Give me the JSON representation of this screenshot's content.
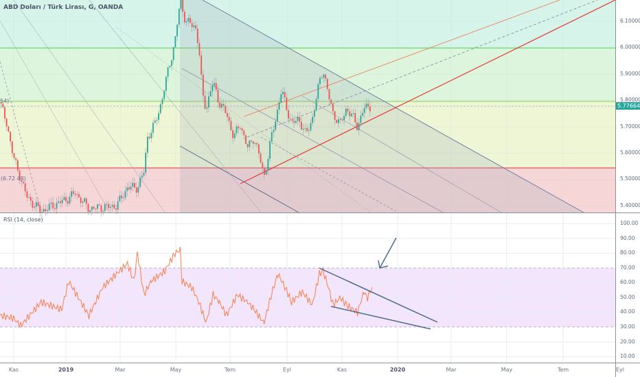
{
  "header": {
    "title": "ABD Doları / Türk Lirası, G, OANDA"
  },
  "price_scale": {
    "labels": [
      "6.10000",
      "6.00000",
      "5.90000",
      "5.80000",
      "5.70000",
      "5.60000",
      "5.50000",
      "5.40000"
    ],
    "current_price": "5.77664"
  },
  "fib_labels": {
    "upper_left": "54)",
    "lower_left": "(6.72 48)"
  },
  "rsi": {
    "title": "RSI (14, close)",
    "labels": [
      "100.00",
      "90.00",
      "80.00",
      "70.00",
      "60.00",
      "50.00",
      "40.00",
      "30.00",
      "20.00",
      "10.00"
    ],
    "band": [
      30,
      70
    ]
  },
  "time_axis": {
    "labels": [
      "Kas",
      "2019",
      "Mar",
      "May",
      "Tem",
      "Eyl",
      "Kas",
      "2020",
      "Mar",
      "May",
      "Tem",
      "Eyl"
    ],
    "bold": [
      false,
      true,
      false,
      false,
      false,
      false,
      false,
      true,
      false,
      false,
      false,
      false
    ]
  },
  "colors": {
    "up": "#26a69a",
    "down": "#ef5350",
    "rsi_line": "#f57f4a",
    "rsi_band": "#f3e5fc",
    "current_price": "#26a69a",
    "trend_red": "#e53935"
  },
  "chart_data": [
    {
      "type": "candlestick",
      "title": "ABD Doları / Türk Lirası, G, OANDA",
      "ylim": [
        5.37,
        6.18
      ],
      "price_ticks": [
        5.4,
        5.5,
        5.6,
        5.7,
        5.8,
        5.9,
        6.0,
        6.1
      ],
      "approx_closes": [
        [
          "2018-10-16",
          5.79
        ],
        [
          "2018-10-24",
          5.71
        ],
        [
          "2018-11-01",
          5.58
        ],
        [
          "2018-11-17",
          5.43
        ],
        [
          "2018-12-03",
          5.38
        ],
        [
          "2019-01-04",
          5.43
        ],
        [
          "2019-01-11",
          5.45
        ],
        [
          "2019-01-26",
          5.39
        ],
        [
          "2019-02-25",
          5.4
        ],
        [
          "2019-03-09",
          5.47
        ],
        [
          "2019-03-20",
          5.47
        ],
        [
          "2019-03-27",
          5.53
        ],
        [
          "2019-03-31",
          5.66
        ],
        [
          "2019-04-08",
          5.71
        ],
        [
          "2019-04-15",
          5.79
        ],
        [
          "2019-04-23",
          5.92
        ],
        [
          "2019-04-30",
          6.02
        ],
        [
          "2019-05-06",
          6.18
        ],
        [
          "2019-05-12",
          6.1
        ],
        [
          "2019-05-23",
          6.08
        ],
        [
          "2019-05-27",
          6.0
        ],
        [
          "2019-05-31",
          5.82
        ],
        [
          "2019-06-04",
          5.77
        ],
        [
          "2019-06-12",
          5.87
        ],
        [
          "2019-06-19",
          5.79
        ],
        [
          "2019-06-27",
          5.75
        ],
        [
          "2019-07-05",
          5.66
        ],
        [
          "2019-07-12",
          5.71
        ],
        [
          "2019-07-20",
          5.62
        ],
        [
          "2019-07-27",
          5.66
        ],
        [
          "2019-08-04",
          5.56
        ],
        [
          "2019-08-07",
          5.51
        ],
        [
          "2019-08-11",
          5.58
        ],
        [
          "2019-08-15",
          5.66
        ],
        [
          "2019-08-22",
          5.77
        ],
        [
          "2019-08-26",
          5.84
        ],
        [
          "2019-08-30",
          5.79
        ],
        [
          "2019-09-06",
          5.71
        ],
        [
          "2019-09-14",
          5.73
        ],
        [
          "2019-09-22",
          5.67
        ],
        [
          "2019-09-29",
          5.73
        ],
        [
          "2019-10-07",
          5.87
        ],
        [
          "2019-10-11",
          5.92
        ],
        [
          "2019-10-17",
          5.82
        ],
        [
          "2019-10-22",
          5.75
        ],
        [
          "2019-10-30",
          5.71
        ],
        [
          "2019-11-06",
          5.77
        ],
        [
          "2019-11-14",
          5.73
        ],
        [
          "2019-11-18",
          5.7
        ],
        [
          "2019-11-25",
          5.77
        ],
        [
          "2019-12-03",
          5.78
        ]
      ]
    },
    {
      "type": "line",
      "title": "RSI (14, close)",
      "ylim": [
        0,
        105
      ],
      "yticks": [
        10,
        20,
        30,
        40,
        50,
        60,
        70,
        80,
        90,
        100
      ],
      "approx_values": [
        [
          "2018-10-16",
          38
        ],
        [
          "2018-11-01",
          36
        ],
        [
          "2018-11-09",
          31
        ],
        [
          "2018-12-03",
          47
        ],
        [
          "2018-12-27",
          42
        ],
        [
          "2019-01-04",
          61
        ],
        [
          "2019-01-26",
          38
        ],
        [
          "2019-02-10",
          57
        ],
        [
          "2019-02-25",
          66
        ],
        [
          "2019-03-09",
          73
        ],
        [
          "2019-03-16",
          61
        ],
        [
          "2019-03-20",
          80
        ],
        [
          "2019-03-27",
          52
        ],
        [
          "2019-04-04",
          61
        ],
        [
          "2019-04-19",
          68
        ],
        [
          "2019-04-30",
          80
        ],
        [
          "2019-05-06",
          82
        ],
        [
          "2019-05-08",
          61
        ],
        [
          "2019-05-19",
          57
        ],
        [
          "2019-05-27",
          47
        ],
        [
          "2019-06-04",
          33
        ],
        [
          "2019-06-12",
          52
        ],
        [
          "2019-06-19",
          47
        ],
        [
          "2019-06-27",
          38
        ],
        [
          "2019-07-09",
          52
        ],
        [
          "2019-07-20",
          47
        ],
        [
          "2019-07-27",
          42
        ],
        [
          "2019-08-07",
          33
        ],
        [
          "2019-08-15",
          52
        ],
        [
          "2019-08-22",
          66
        ],
        [
          "2019-08-30",
          57
        ],
        [
          "2019-09-06",
          47
        ],
        [
          "2019-09-18",
          54
        ],
        [
          "2019-09-29",
          45
        ],
        [
          "2019-10-07",
          66
        ],
        [
          "2019-10-11",
          68
        ],
        [
          "2019-10-17",
          57
        ],
        [
          "2019-10-22",
          45
        ],
        [
          "2019-10-30",
          50
        ],
        [
          "2019-11-06",
          45
        ],
        [
          "2019-11-18",
          40
        ],
        [
          "2019-11-25",
          54
        ],
        [
          "2019-11-29",
          50
        ],
        [
          "2019-12-04",
          57
        ]
      ]
    }
  ]
}
